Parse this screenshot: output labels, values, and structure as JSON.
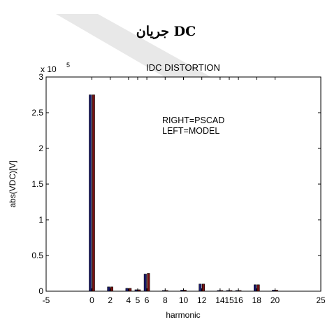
{
  "page": {
    "heading": "جریان DC"
  },
  "chart_data": {
    "type": "bar",
    "title": "IDC DISTORTION",
    "xlabel": "harmonic",
    "ylabel": "abs(VDC)[V]",
    "y_scale_base": "x 10",
    "y_scale_exp": "5",
    "xlim": [
      -5,
      25
    ],
    "ylim": [
      0,
      3
    ],
    "x_ticks": [
      -5,
      0,
      2,
      4,
      5,
      6,
      8,
      10,
      12,
      14,
      15,
      16,
      18,
      20,
      25
    ],
    "y_ticks": [
      0,
      0.5,
      1,
      1.5,
      2,
      2.5,
      3
    ],
    "annotations": [
      "RIGHT=PSCAD",
      "LEFT=MODEL"
    ],
    "x": [
      0,
      2,
      4,
      5,
      6,
      8,
      10,
      12,
      14,
      15,
      16,
      18,
      20
    ],
    "series": [
      {
        "name": "MODEL",
        "color": "#1a1a6e",
        "values": [
          2.75,
          0.06,
          0.04,
          0.02,
          0.24,
          0.01,
          0.015,
          0.1,
          0.01,
          0.01,
          0.01,
          0.09,
          0.015
        ]
      },
      {
        "name": "PSCAD",
        "color": "#7a1010",
        "values": [
          2.75,
          0.06,
          0.04,
          0.02,
          0.25,
          0.01,
          0.015,
          0.1,
          0.01,
          0.01,
          0.01,
          0.09,
          0.015
        ]
      }
    ],
    "grid": false
  }
}
